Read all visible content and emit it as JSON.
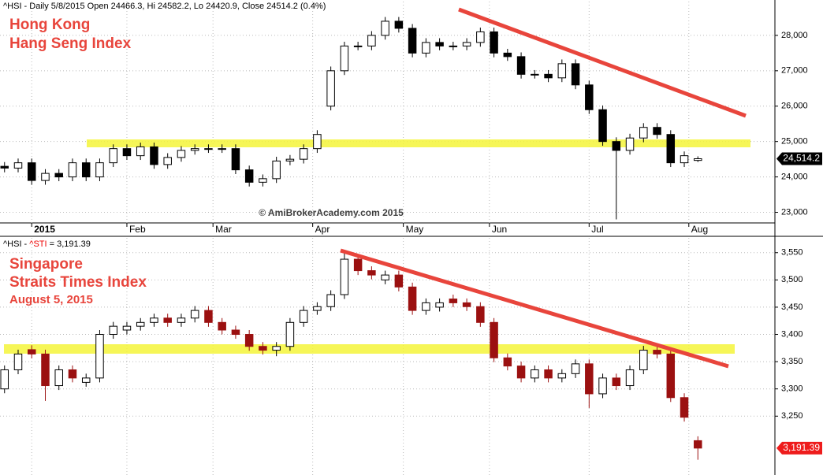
{
  "chart_data": [
    {
      "type": "candlestick",
      "header": "^HSI - Daily 5/8/2015 Open 24466.3, Hi 24582.2, Lo 24420.9, Close 24514.2 (0.4%)",
      "title": "Hong Kong",
      "subtitle": "Hang Seng Index",
      "watermark": "© AmiBrokerAcademy.com 2015",
      "last_label": "24,514.2",
      "tag_color": "#000000",
      "up_color": "#ffffff",
      "down_color": "#000000",
      "x": [
        0,
        3,
        6,
        9,
        12,
        15,
        18,
        21,
        24,
        27,
        30,
        33,
        36,
        39,
        42,
        45,
        48,
        51,
        54,
        57,
        60,
        63,
        66,
        69,
        72,
        75,
        78,
        81,
        84,
        87,
        90,
        93,
        96,
        99,
        102,
        105,
        108,
        111,
        114,
        117,
        120,
        123,
        126,
        129,
        132,
        135,
        138,
        141,
        144,
        147,
        150,
        153
      ],
      "open": [
        24300,
        24250,
        24400,
        23900,
        24100,
        24000,
        24400,
        24000,
        24400,
        24800,
        24600,
        24850,
        24350,
        24550,
        24750,
        24800,
        24800,
        24800,
        24200,
        23850,
        23950,
        24450,
        24500,
        24800,
        26000,
        27000,
        27700,
        27700,
        28000,
        28400,
        28200,
        27500,
        27800,
        27700,
        27700,
        27800,
        28100,
        27500,
        27400,
        26900,
        26900,
        26800,
        27200,
        26600,
        25900,
        25000,
        24750,
        25100,
        25400,
        25200,
        24400,
        24466.3
      ],
      "high": [
        24420,
        24520,
        24520,
        24220,
        24220,
        24520,
        24520,
        24520,
        24920,
        24920,
        24970,
        24970,
        24670,
        24870,
        24920,
        24920,
        24920,
        24920,
        24320,
        24070,
        24570,
        24620,
        24920,
        25320,
        27120,
        27820,
        27820,
        28120,
        28520,
        28520,
        28320,
        27920,
        27920,
        27820,
        27920,
        28220,
        28220,
        27620,
        27520,
        27020,
        27020,
        27320,
        27320,
        26720,
        26020,
        25120,
        25220,
        25520,
        25520,
        25320,
        24720,
        24582.2
      ],
      "low": [
        24130,
        24130,
        23780,
        23780,
        23880,
        23880,
        23880,
        23880,
        24280,
        24480,
        24480,
        24230,
        24230,
        24430,
        24630,
        24680,
        24680,
        24080,
        23730,
        23730,
        23830,
        24330,
        24380,
        24680,
        25880,
        26880,
        27580,
        27580,
        27880,
        28080,
        27380,
        27380,
        27580,
        27580,
        27580,
        27680,
        27380,
        27280,
        26780,
        26780,
        26680,
        26680,
        26480,
        25780,
        24880,
        22800,
        24630,
        24980,
        25080,
        24280,
        24280,
        24420.9
      ],
      "close": [
        24250,
        24400,
        23900,
        24100,
        24000,
        24400,
        24000,
        24400,
        24800,
        24600,
        24850,
        24350,
        24550,
        24750,
        24800,
        24800,
        24800,
        24200,
        23850,
        23950,
        24450,
        24500,
        24800,
        25200,
        27000,
        27700,
        27700,
        28000,
        28400,
        28200,
        27500,
        27800,
        27700,
        27700,
        27800,
        28100,
        27500,
        27400,
        26900,
        26900,
        26800,
        27200,
        26600,
        25900,
        25000,
        24750,
        25100,
        25400,
        25200,
        24400,
        24600,
        24514.2
      ],
      "xlim": [
        -1,
        170
      ],
      "ylim": [
        22700,
        29000
      ],
      "yticks": [
        {
          "value": 23000,
          "label": "23,000"
        },
        {
          "value": 24000,
          "label": "24,000"
        },
        {
          "value": 25000,
          "label": "25,000"
        },
        {
          "value": 26000,
          "label": "26,000"
        },
        {
          "value": 27000,
          "label": "27,000"
        },
        {
          "value": 28000,
          "label": "28,000"
        }
      ],
      "xticks": [
        {
          "value": 6,
          "label": "2015"
        },
        {
          "value": 27,
          "label": "Feb"
        },
        {
          "value": 46,
          "label": "Mar"
        },
        {
          "value": 68,
          "label": "Apr"
        },
        {
          "value": 88,
          "label": "May"
        },
        {
          "value": 107,
          "label": "Jun"
        },
        {
          "value": 129,
          "label": "Jul"
        },
        {
          "value": 151,
          "label": "Aug"
        }
      ]
    },
    {
      "type": "candlestick",
      "header": [
        "^HSI - ",
        "^STI",
        " = 3,191.39"
      ],
      "title": "Singapore",
      "subtitle": "Straits Times Index",
      "date": "August 5, 2015",
      "last_label": "3,191.39",
      "tag_color": "#ee1c1c",
      "up_color": "#ffffff",
      "down_color": "#9b1010",
      "x": [
        0,
        3,
        6,
        9,
        12,
        15,
        18,
        21,
        24,
        27,
        30,
        33,
        36,
        39,
        42,
        45,
        48,
        51,
        54,
        57,
        60,
        63,
        66,
        69,
        72,
        75,
        78,
        81,
        84,
        87,
        90,
        93,
        96,
        99,
        102,
        105,
        108,
        111,
        114,
        117,
        120,
        123,
        126,
        129,
        132,
        135,
        138,
        141,
        144,
        147,
        150,
        153
      ],
      "open": [
        3300,
        3335,
        3372,
        3364,
        3306,
        3335,
        3312,
        3320,
        3400,
        3408,
        3415,
        3422,
        3430,
        3422,
        3430,
        3444,
        3422,
        3408,
        3400,
        3378,
        3371,
        3378,
        3422,
        3444,
        3451,
        3473,
        3538,
        3517,
        3500,
        3509,
        3487,
        3444,
        3450,
        3465,
        3458,
        3451,
        3422,
        3357,
        3342,
        3320,
        3335,
        3320,
        3328,
        3346,
        3291,
        3320,
        3306,
        3335,
        3371,
        3364,
        3284,
        3205
      ],
      "high": [
        3343,
        3372,
        3380,
        3372,
        3343,
        3343,
        3328,
        3408,
        3423,
        3423,
        3430,
        3438,
        3438,
        3438,
        3452,
        3452,
        3430,
        3416,
        3408,
        3386,
        3386,
        3430,
        3452,
        3459,
        3481,
        3552,
        3546,
        3525,
        3517,
        3517,
        3495,
        3466,
        3466,
        3473,
        3466,
        3459,
        3430,
        3365,
        3350,
        3343,
        3343,
        3336,
        3354,
        3354,
        3328,
        3328,
        3343,
        3379,
        3379,
        3372,
        3292,
        3213
      ],
      "low": [
        3292,
        3327,
        3356,
        3278,
        3298,
        3312,
        3304,
        3312,
        3392,
        3400,
        3407,
        3414,
        3414,
        3414,
        3422,
        3414,
        3400,
        3392,
        3370,
        3363,
        3360,
        3370,
        3414,
        3436,
        3443,
        3465,
        3509,
        3501,
        3492,
        3479,
        3436,
        3436,
        3442,
        3450,
        3443,
        3414,
        3349,
        3334,
        3312,
        3312,
        3312,
        3312,
        3320,
        3265,
        3283,
        3298,
        3298,
        3327,
        3356,
        3276,
        3240,
        3170
      ],
      "close": [
        3335,
        3364,
        3364,
        3306,
        3335,
        3320,
        3320,
        3400,
        3415,
        3415,
        3422,
        3430,
        3422,
        3430,
        3444,
        3422,
        3408,
        3400,
        3378,
        3371,
        3378,
        3422,
        3444,
        3451,
        3473,
        3538,
        3517,
        3509,
        3509,
        3487,
        3444,
        3458,
        3458,
        3458,
        3451,
        3422,
        3357,
        3342,
        3320,
        3335,
        3320,
        3328,
        3346,
        3291,
        3320,
        3306,
        3335,
        3371,
        3364,
        3284,
        3248,
        3191.39
      ],
      "xlim": [
        -1,
        170
      ],
      "ylim": [
        3142,
        3580
      ],
      "yticks": [
        {
          "value": 3250,
          "label": "3,250"
        },
        {
          "value": 3300,
          "label": "3,300"
        },
        {
          "value": 3350,
          "label": "3,350"
        },
        {
          "value": 3400,
          "label": "3,400"
        },
        {
          "value": 3450,
          "label": "3,450"
        },
        {
          "value": 3500,
          "label": "3,500"
        },
        {
          "value": 3550,
          "label": "3,550"
        }
      ]
    }
  ]
}
